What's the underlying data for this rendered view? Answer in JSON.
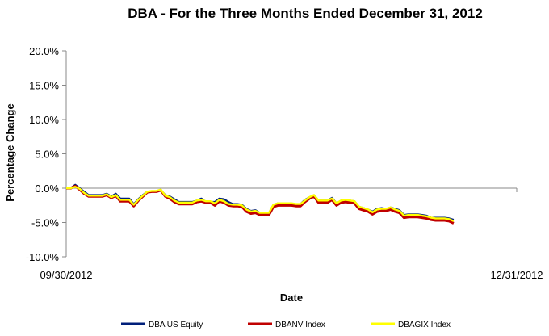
{
  "chart_data": {
    "type": "line",
    "title": "DBA - For the Three Months Ended December 31, 2012",
    "xlabel": "Date",
    "ylabel": "Percentage Change",
    "x_ticks": [
      "09/30/2012",
      "12/31/2012"
    ],
    "y_ticks": [
      "20.0%",
      "15.0%",
      "10.0%",
      "5.0%",
      "0.0%",
      "-5.0%",
      "-10.0%"
    ],
    "ylim": [
      -10,
      20
    ],
    "xlim": [
      0,
      100
    ],
    "grid": false,
    "legend_position": "bottom",
    "series": [
      {
        "name": "DBA US Equity",
        "color": "#001f7a",
        "points": [
          [
            0,
            0
          ],
          [
            1,
            0
          ],
          [
            2,
            0.5
          ],
          [
            3,
            0
          ],
          [
            4,
            -0.5
          ],
          [
            5,
            -1
          ],
          [
            6,
            -1
          ],
          [
            7,
            -1
          ],
          [
            8,
            -1
          ],
          [
            9,
            -0.8
          ],
          [
            10,
            -1.2
          ],
          [
            11,
            -0.8
          ],
          [
            12,
            -1.5
          ],
          [
            13,
            -1.5
          ],
          [
            14,
            -1.5
          ],
          [
            15,
            -2.3
          ],
          [
            16,
            -1.6
          ],
          [
            17,
            -1
          ],
          [
            18,
            -0.5
          ],
          [
            19,
            -0.5
          ],
          [
            20,
            -0.5
          ],
          [
            21,
            -0.3
          ],
          [
            22,
            -1
          ],
          [
            23,
            -1.2
          ],
          [
            24,
            -1.6
          ],
          [
            25,
            -2
          ],
          [
            26,
            -2
          ],
          [
            27,
            -2
          ],
          [
            28,
            -2
          ],
          [
            29,
            -1.8
          ],
          [
            30,
            -1.5
          ],
          [
            31,
            -2
          ],
          [
            32,
            -2
          ],
          [
            33,
            -2
          ],
          [
            34,
            -1.5
          ],
          [
            35,
            -1.6
          ],
          [
            36,
            -2
          ],
          [
            37,
            -2.3
          ],
          [
            38,
            -2.3
          ],
          [
            39,
            -2.4
          ],
          [
            40,
            -3
          ],
          [
            41,
            -3.3
          ],
          [
            42,
            -3.2
          ],
          [
            43,
            -3.6
          ],
          [
            44,
            -3.6
          ],
          [
            45,
            -3.6
          ],
          [
            46,
            -2.4
          ],
          [
            47,
            -2.2
          ],
          [
            48,
            -2.3
          ],
          [
            49,
            -2.3
          ],
          [
            50,
            -2.3
          ],
          [
            51,
            -2.3
          ],
          [
            52,
            -2.3
          ],
          [
            53,
            -1.7
          ],
          [
            54,
            -1.3
          ],
          [
            55,
            -1
          ],
          [
            56,
            -1.8
          ],
          [
            57,
            -1.8
          ],
          [
            58,
            -1.8
          ],
          [
            59,
            -1.4
          ],
          [
            60,
            -2.2
          ],
          [
            61,
            -1.8
          ],
          [
            62,
            -1.7
          ],
          [
            63,
            -1.8
          ],
          [
            64,
            -1.9
          ],
          [
            65,
            -2.7
          ],
          [
            66,
            -2.9
          ],
          [
            67,
            -3.1
          ],
          [
            68,
            -3.4
          ],
          [
            69,
            -3
          ],
          [
            70,
            -2.9
          ],
          [
            71,
            -3
          ],
          [
            72,
            -2.8
          ],
          [
            73,
            -3
          ],
          [
            74,
            -3.2
          ],
          [
            75,
            -3.9
          ],
          [
            76,
            -3.8
          ],
          [
            77,
            -3.8
          ],
          [
            78,
            -3.8
          ],
          [
            79,
            -3.9
          ],
          [
            80,
            -4
          ],
          [
            81,
            -4.3
          ],
          [
            82,
            -4.3
          ],
          [
            83,
            -4.3
          ],
          [
            84,
            -4.3
          ],
          [
            85,
            -4.4
          ],
          [
            86,
            -4.6
          ]
        ]
      },
      {
        "name": "DBANV Index",
        "color": "#c00000",
        "points": [
          [
            0,
            0
          ],
          [
            1,
            0
          ],
          [
            2,
            0.3
          ],
          [
            3,
            -0.2
          ],
          [
            4,
            -0.8
          ],
          [
            5,
            -1.2
          ],
          [
            6,
            -1.2
          ],
          [
            7,
            -1.2
          ],
          [
            8,
            -1.2
          ],
          [
            9,
            -1
          ],
          [
            10,
            -1.4
          ],
          [
            11,
            -1.1
          ],
          [
            12,
            -1.9
          ],
          [
            13,
            -1.9
          ],
          [
            14,
            -1.9
          ],
          [
            15,
            -2.6
          ],
          [
            16,
            -1.8
          ],
          [
            17,
            -1.2
          ],
          [
            18,
            -0.6
          ],
          [
            19,
            -0.5
          ],
          [
            20,
            -0.5
          ],
          [
            21,
            -0.3
          ],
          [
            22,
            -1.2
          ],
          [
            23,
            -1.5
          ],
          [
            24,
            -2
          ],
          [
            25,
            -2.3
          ],
          [
            26,
            -2.3
          ],
          [
            27,
            -2.3
          ],
          [
            28,
            -2.3
          ],
          [
            29,
            -2
          ],
          [
            30,
            -1.9
          ],
          [
            31,
            -2.1
          ],
          [
            32,
            -2.1
          ],
          [
            33,
            -2.5
          ],
          [
            34,
            -1.9
          ],
          [
            35,
            -2.1
          ],
          [
            36,
            -2.5
          ],
          [
            37,
            -2.6
          ],
          [
            38,
            -2.6
          ],
          [
            39,
            -2.7
          ],
          [
            40,
            -3.4
          ],
          [
            41,
            -3.7
          ],
          [
            42,
            -3.6
          ],
          [
            43,
            -3.9
          ],
          [
            44,
            -3.9
          ],
          [
            45,
            -3.9
          ],
          [
            46,
            -2.7
          ],
          [
            47,
            -2.5
          ],
          [
            48,
            -2.5
          ],
          [
            49,
            -2.5
          ],
          [
            50,
            -2.5
          ],
          [
            51,
            -2.6
          ],
          [
            52,
            -2.6
          ],
          [
            53,
            -2
          ],
          [
            54,
            -1.5
          ],
          [
            55,
            -1.2
          ],
          [
            56,
            -2.1
          ],
          [
            57,
            -2.1
          ],
          [
            58,
            -2.1
          ],
          [
            59,
            -1.7
          ],
          [
            60,
            -2.5
          ],
          [
            61,
            -2.1
          ],
          [
            62,
            -2
          ],
          [
            63,
            -2.1
          ],
          [
            64,
            -2.2
          ],
          [
            65,
            -3
          ],
          [
            66,
            -3.2
          ],
          [
            67,
            -3.4
          ],
          [
            68,
            -3.8
          ],
          [
            69,
            -3.4
          ],
          [
            70,
            -3.3
          ],
          [
            71,
            -3.3
          ],
          [
            72,
            -3.1
          ],
          [
            73,
            -3.4
          ],
          [
            74,
            -3.6
          ],
          [
            75,
            -4.3
          ],
          [
            76,
            -4.2
          ],
          [
            77,
            -4.2
          ],
          [
            78,
            -4.2
          ],
          [
            79,
            -4.3
          ],
          [
            80,
            -4.4
          ],
          [
            81,
            -4.6
          ],
          [
            82,
            -4.7
          ],
          [
            83,
            -4.7
          ],
          [
            84,
            -4.7
          ],
          [
            85,
            -4.8
          ],
          [
            86,
            -5.1
          ]
        ]
      },
      {
        "name": "DBAGIX Index",
        "color": "#ffff00",
        "points": [
          [
            0,
            0
          ],
          [
            1,
            0
          ],
          [
            2,
            0.2
          ],
          [
            3,
            -0.1
          ],
          [
            4,
            -0.7
          ],
          [
            5,
            -1.1
          ],
          [
            6,
            -1.1
          ],
          [
            7,
            -1.1
          ],
          [
            8,
            -1.1
          ],
          [
            9,
            -0.9
          ],
          [
            10,
            -1.3
          ],
          [
            11,
            -1
          ],
          [
            12,
            -1.7
          ],
          [
            13,
            -1.7
          ],
          [
            14,
            -1.7
          ],
          [
            15,
            -2.4
          ],
          [
            16,
            -1.7
          ],
          [
            17,
            -1.1
          ],
          [
            18,
            -0.5
          ],
          [
            19,
            -0.4
          ],
          [
            20,
            -0.4
          ],
          [
            21,
            -0.2
          ],
          [
            22,
            -1.1
          ],
          [
            23,
            -1.3
          ],
          [
            24,
            -1.8
          ],
          [
            25,
            -2.1
          ],
          [
            26,
            -2.1
          ],
          [
            27,
            -2.1
          ],
          [
            28,
            -2.1
          ],
          [
            29,
            -1.8
          ],
          [
            30,
            -1.7
          ],
          [
            31,
            -1.9
          ],
          [
            32,
            -1.9
          ],
          [
            33,
            -2.2
          ],
          [
            34,
            -1.7
          ],
          [
            35,
            -1.9
          ],
          [
            36,
            -2.3
          ],
          [
            37,
            -2.4
          ],
          [
            38,
            -2.4
          ],
          [
            39,
            -2.5
          ],
          [
            40,
            -3.1
          ],
          [
            41,
            -3.4
          ],
          [
            42,
            -3.3
          ],
          [
            43,
            -3.6
          ],
          [
            44,
            -3.6
          ],
          [
            45,
            -3.6
          ],
          [
            46,
            -2.4
          ],
          [
            47,
            -2.2
          ],
          [
            48,
            -2.2
          ],
          [
            49,
            -2.2
          ],
          [
            50,
            -2.2
          ],
          [
            51,
            -2.3
          ],
          [
            52,
            -2.3
          ],
          [
            53,
            -1.8
          ],
          [
            54,
            -1.3
          ],
          [
            55,
            -1
          ],
          [
            56,
            -1.8
          ],
          [
            57,
            -1.8
          ],
          [
            58,
            -1.8
          ],
          [
            59,
            -1.5
          ],
          [
            60,
            -2.2
          ],
          [
            61,
            -1.8
          ],
          [
            62,
            -1.7
          ],
          [
            63,
            -1.8
          ],
          [
            64,
            -1.9
          ],
          [
            65,
            -2.7
          ],
          [
            66,
            -2.9
          ],
          [
            67,
            -3.1
          ],
          [
            68,
            -3.5
          ],
          [
            69,
            -3.1
          ],
          [
            70,
            -3
          ],
          [
            71,
            -3
          ],
          [
            72,
            -2.8
          ],
          [
            73,
            -3.1
          ],
          [
            74,
            -3.3
          ],
          [
            75,
            -4
          ],
          [
            76,
            -3.9
          ],
          [
            77,
            -3.9
          ],
          [
            78,
            -3.9
          ],
          [
            79,
            -4
          ],
          [
            80,
            -4.1
          ],
          [
            81,
            -4.3
          ],
          [
            82,
            -4.4
          ],
          [
            83,
            -4.4
          ],
          [
            84,
            -4.4
          ],
          [
            85,
            -4.5
          ],
          [
            86,
            -4.8
          ]
        ]
      }
    ]
  }
}
